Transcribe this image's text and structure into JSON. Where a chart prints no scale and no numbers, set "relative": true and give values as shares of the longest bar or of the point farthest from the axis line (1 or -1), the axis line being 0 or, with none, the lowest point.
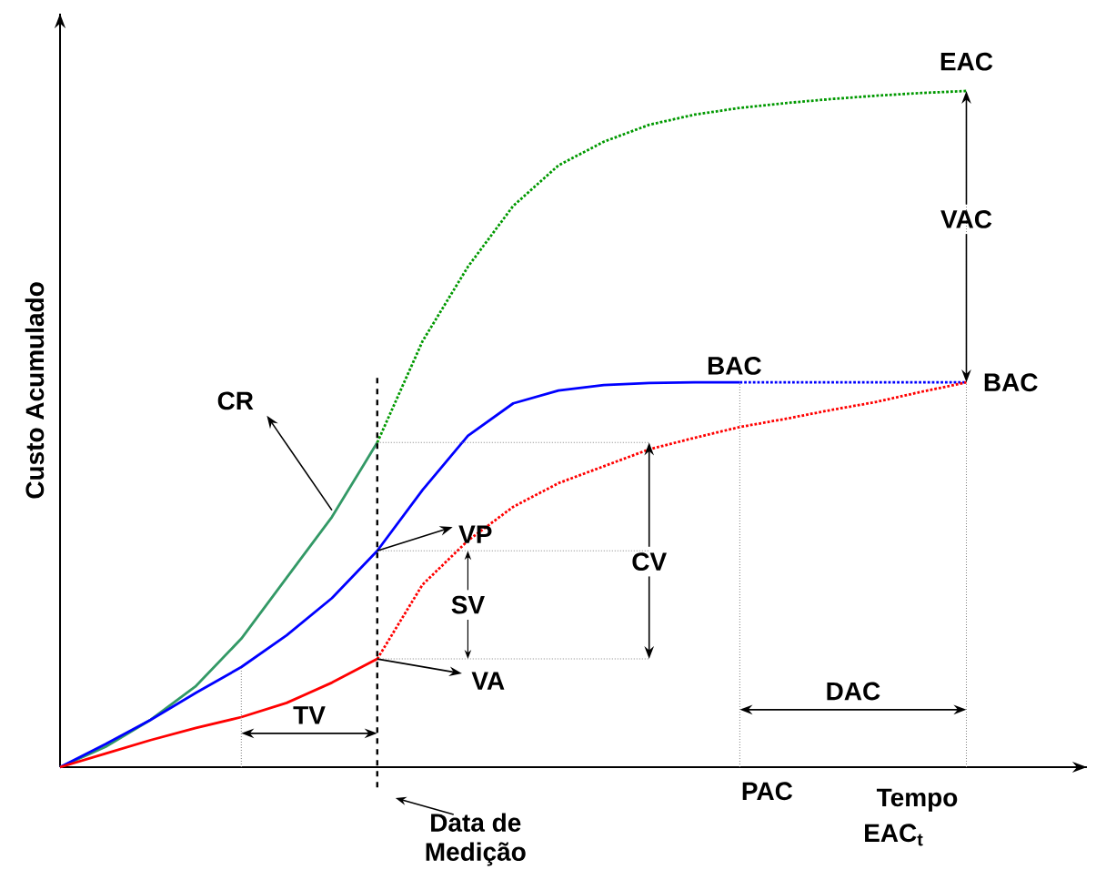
{
  "chart_data": {
    "type": "line",
    "relative": true,
    "xlabel": "Tempo",
    "ylabel": "Custo Acumulado",
    "marker": "none",
    "categories": [
      null,
      null,
      null,
      null,
      null,
      null,
      null,
      null,
      null,
      null,
      null,
      null,
      null,
      null,
      null,
      null,
      null,
      null,
      null,
      null,
      null
    ],
    "series": [
      {
        "color": "#339966",
        "line_style": "solid",
        "values": [
          0,
          0.03,
          0.07,
          0.12,
          0.19,
          0.28,
          0.37,
          0.48,
          null,
          null,
          null,
          null,
          null,
          null,
          null,
          null,
          null,
          null,
          null,
          null,
          null
        ]
      },
      {
        "color": "#009900",
        "line_style": "dotted",
        "values": [
          null,
          null,
          null,
          null,
          null,
          null,
          null,
          0.48,
          0.63,
          0.74,
          0.83,
          0.89,
          0.925,
          0.95,
          0.965,
          0.975,
          0.982,
          0.988,
          0.993,
          0.997,
          1
        ]
      },
      {
        "color": "#0000ff",
        "line_style": "solid",
        "values": [
          0,
          0.034,
          0.07,
          0.11,
          0.148,
          0.195,
          0.25,
          0.32,
          0.41,
          0.49,
          0.538,
          0.557,
          0.565,
          0.568,
          0.569,
          0.569,
          null,
          null,
          null,
          null,
          null
        ]
      },
      {
        "color": "#0000ff",
        "line_style": "dotted",
        "values": [
          null,
          null,
          null,
          null,
          null,
          null,
          null,
          null,
          null,
          null,
          null,
          null,
          null,
          null,
          null,
          0.569,
          0.569,
          0.569,
          0.569,
          0.569,
          0.569
        ]
      },
      {
        "color": "#ff0000",
        "line_style": "solid",
        "values": [
          0,
          0.02,
          0.04,
          0.058,
          0.074,
          0.095,
          0.125,
          0.16,
          null,
          null,
          null,
          null,
          null,
          null,
          null,
          null,
          null,
          null,
          null,
          null,
          null
        ]
      },
      {
        "color": "#ff0000",
        "line_style": "dotted",
        "values": [
          null,
          null,
          null,
          null,
          null,
          null,
          null,
          0.16,
          0.27,
          0.335,
          0.385,
          0.42,
          0.445,
          0.47,
          0.487,
          0.503,
          0.515,
          0.528,
          0.54,
          0.555,
          0.569
        ]
      }
    ],
    "annotations": [
      "EAC",
      "VAC",
      "BAC",
      "BAC",
      "CR",
      "VP",
      "VA",
      "SV",
      "CV",
      "TV",
      "DAC",
      "PAC",
      "EAC$_{t}$",
      "Data de Medição"
    ]
  }
}
